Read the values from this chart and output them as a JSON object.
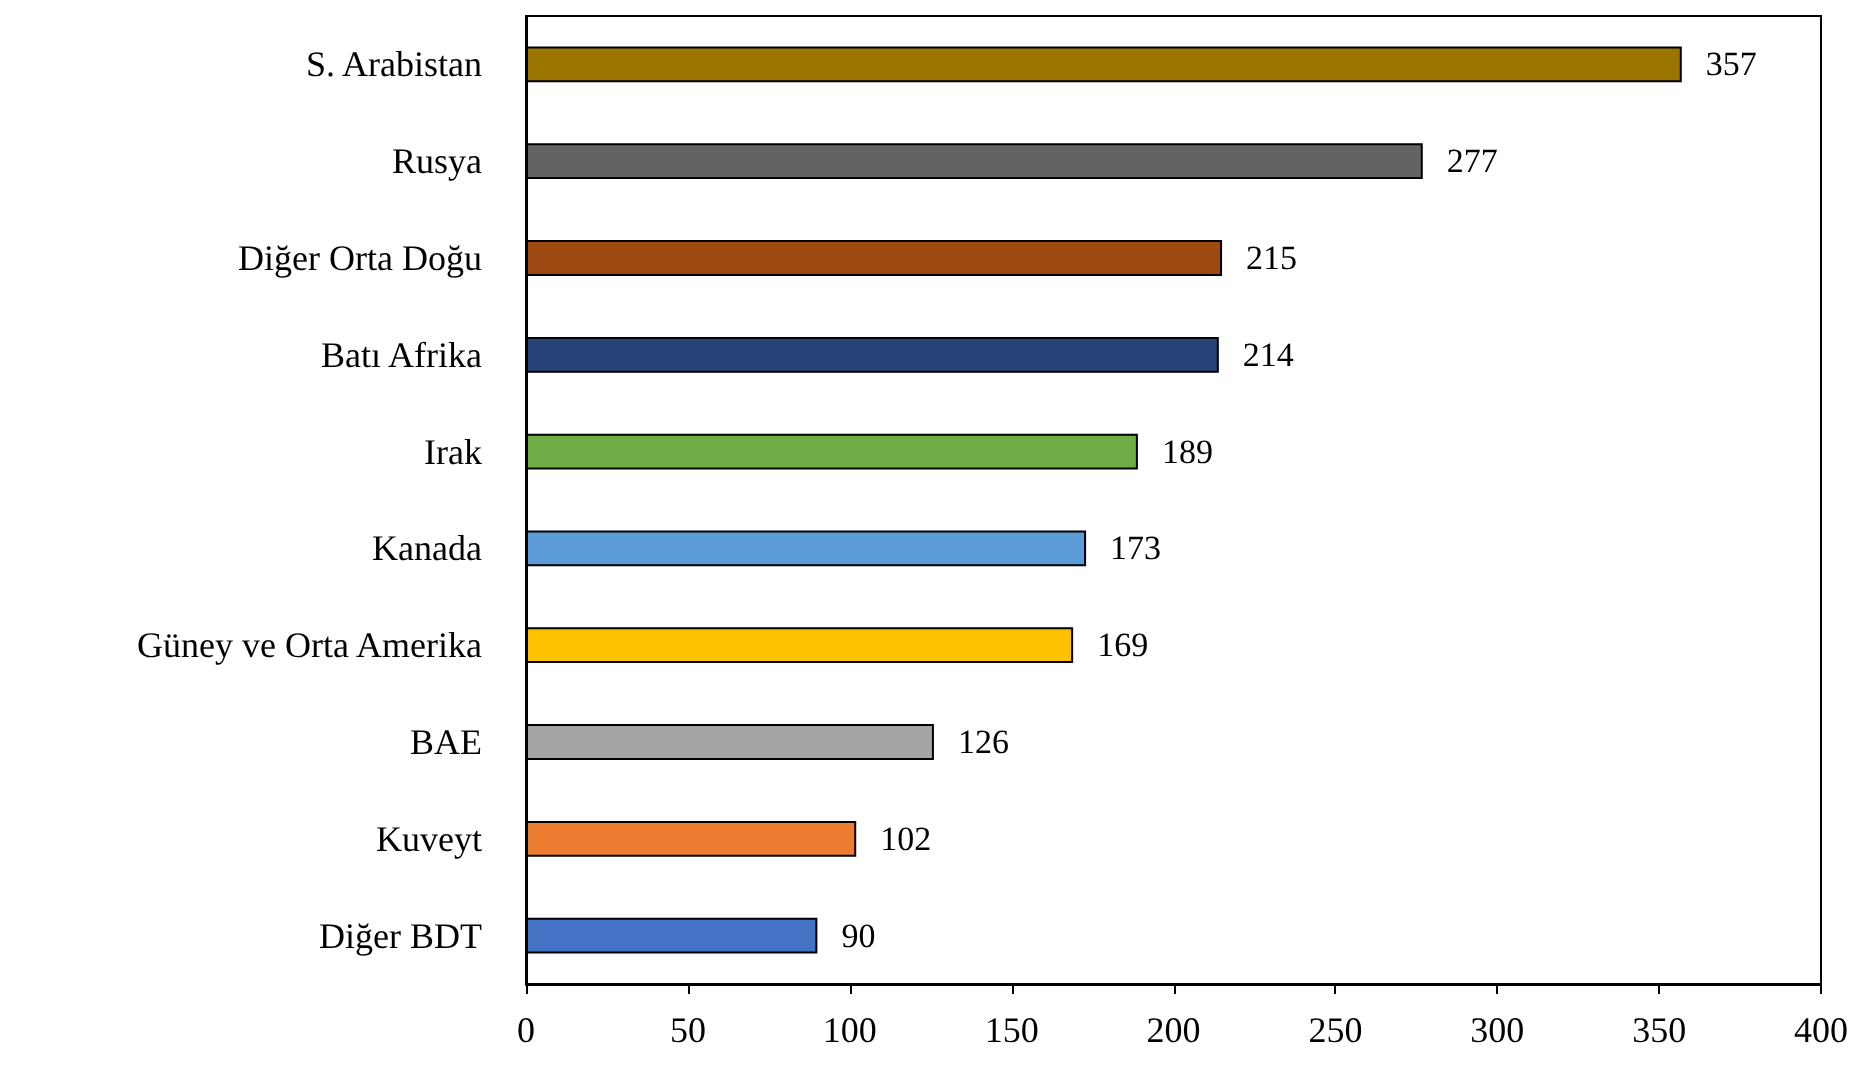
{
  "chart_data": {
    "type": "bar",
    "orientation": "horizontal",
    "categories": [
      "S. Arabistan",
      "Rusya",
      "Diğer Orta Doğu",
      "Batı Afrika",
      "Irak",
      "Kanada",
      "Güney ve Orta Amerika",
      "BAE",
      "Kuveyt",
      "Diğer BDT"
    ],
    "values": [
      357,
      277,
      215,
      214,
      189,
      173,
      169,
      126,
      102,
      90
    ],
    "colors": [
      "#9c7500",
      "#636363",
      "#9e4812",
      "#264478",
      "#70ad47",
      "#5b9bd5",
      "#ffc000",
      "#a5a5a5",
      "#ed7d31",
      "#4472c4"
    ],
    "xlim": [
      0,
      400
    ],
    "xticks": [
      0,
      50,
      100,
      150,
      200,
      250,
      300,
      350,
      400
    ],
    "data_labels": true
  }
}
